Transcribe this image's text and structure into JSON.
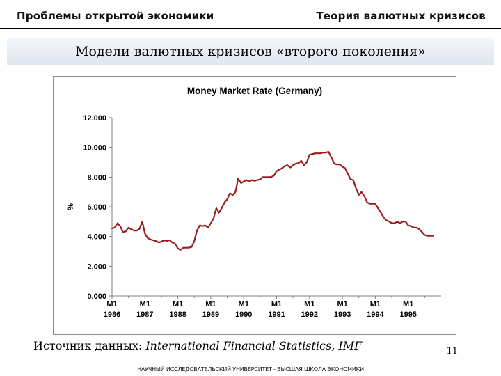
{
  "header": {
    "left": "Проблемы открытой экономики",
    "right": "Теория валютных кризисов"
  },
  "slide": {
    "title": "Модели валютных кризисов «второго поколения»",
    "source_label": "Источник данных:",
    "source_value": "International Financial Statistics, IMF",
    "page_number": "11",
    "footer": "НАУЧНЫЙ ИССЛЕДОВАТЕЛЬСКИЙ УНИВЕРСИТЕТ - ВЫСШАЯ ШКОЛА ЭКОНОМИКИ"
  },
  "colors": {
    "series_line": "#9b1c1c",
    "banner": "#dfe6ee"
  },
  "chart_data": {
    "type": "line",
    "title": "Money Market Rate (Germany)",
    "ylabel": "%",
    "xlabel": "",
    "ylim": [
      0,
      12
    ],
    "yticks": [
      "0.000",
      "2.000",
      "4.000",
      "6.000",
      "8.000",
      "10.000",
      "12.000"
    ],
    "xlim": [
      1986.0,
      1996.0
    ],
    "xticks": [
      {
        "value": 1986,
        "line1": "M1",
        "line2": "1986"
      },
      {
        "value": 1987,
        "line1": "M1",
        "line2": "1987"
      },
      {
        "value": 1988,
        "line1": "M1",
        "line2": "1988"
      },
      {
        "value": 1989,
        "line1": "M1",
        "line2": "1989"
      },
      {
        "value": 1990,
        "line1": "M1",
        "line2": "1990"
      },
      {
        "value": 1991,
        "line1": "M1",
        "line2": "1991"
      },
      {
        "value": 1992,
        "line1": "M1",
        "line2": "1992"
      },
      {
        "value": 1993,
        "line1": "M1",
        "line2": "1993"
      },
      {
        "value": 1994,
        "line1": "M1",
        "line2": "1994"
      },
      {
        "value": 1995,
        "line1": "M1",
        "line2": "1995"
      }
    ],
    "grid": false,
    "legend": "none",
    "series": [
      {
        "points": [
          [
            1986.0,
            4.55
          ],
          [
            1986.08,
            4.6
          ],
          [
            1986.17,
            4.9
          ],
          [
            1986.25,
            4.7
          ],
          [
            1986.33,
            4.3
          ],
          [
            1986.42,
            4.35
          ],
          [
            1986.5,
            4.6
          ],
          [
            1986.58,
            4.5
          ],
          [
            1986.67,
            4.4
          ],
          [
            1986.75,
            4.4
          ],
          [
            1986.83,
            4.5
          ],
          [
            1986.92,
            5.0
          ],
          [
            1987.0,
            4.2
          ],
          [
            1987.08,
            3.9
          ],
          [
            1987.17,
            3.8
          ],
          [
            1987.25,
            3.75
          ],
          [
            1987.33,
            3.7
          ],
          [
            1987.42,
            3.6
          ],
          [
            1987.5,
            3.65
          ],
          [
            1987.58,
            3.75
          ],
          [
            1987.67,
            3.7
          ],
          [
            1987.75,
            3.75
          ],
          [
            1987.83,
            3.6
          ],
          [
            1987.92,
            3.5
          ],
          [
            1988.0,
            3.2
          ],
          [
            1988.08,
            3.1
          ],
          [
            1988.17,
            3.25
          ],
          [
            1988.25,
            3.25
          ],
          [
            1988.33,
            3.25
          ],
          [
            1988.42,
            3.3
          ],
          [
            1988.5,
            3.7
          ],
          [
            1988.58,
            4.4
          ],
          [
            1988.67,
            4.75
          ],
          [
            1988.75,
            4.7
          ],
          [
            1988.83,
            4.75
          ],
          [
            1988.92,
            4.6
          ],
          [
            1989.0,
            4.9
          ],
          [
            1989.08,
            5.2
          ],
          [
            1989.17,
            5.9
          ],
          [
            1989.25,
            5.6
          ],
          [
            1989.33,
            5.9
          ],
          [
            1989.42,
            6.3
          ],
          [
            1989.5,
            6.5
          ],
          [
            1989.58,
            6.9
          ],
          [
            1989.67,
            6.8
          ],
          [
            1989.75,
            7.0
          ],
          [
            1989.83,
            7.9
          ],
          [
            1989.92,
            7.6
          ],
          [
            1990.0,
            7.7
          ],
          [
            1990.08,
            7.8
          ],
          [
            1990.17,
            7.7
          ],
          [
            1990.25,
            7.8
          ],
          [
            1990.33,
            7.75
          ],
          [
            1990.42,
            7.8
          ],
          [
            1990.5,
            7.85
          ],
          [
            1990.58,
            8.0
          ],
          [
            1990.67,
            8.0
          ],
          [
            1990.75,
            8.0
          ],
          [
            1990.83,
            8.0
          ],
          [
            1990.92,
            8.1
          ],
          [
            1991.0,
            8.4
          ],
          [
            1991.08,
            8.5
          ],
          [
            1991.17,
            8.6
          ],
          [
            1991.25,
            8.75
          ],
          [
            1991.33,
            8.8
          ],
          [
            1991.42,
            8.65
          ],
          [
            1991.5,
            8.8
          ],
          [
            1991.58,
            8.9
          ],
          [
            1991.67,
            8.95
          ],
          [
            1991.75,
            9.1
          ],
          [
            1991.83,
            8.8
          ],
          [
            1991.92,
            9.0
          ],
          [
            1992.0,
            9.5
          ],
          [
            1992.08,
            9.55
          ],
          [
            1992.17,
            9.6
          ],
          [
            1992.25,
            9.6
          ],
          [
            1992.33,
            9.6
          ],
          [
            1992.42,
            9.65
          ],
          [
            1992.5,
            9.65
          ],
          [
            1992.58,
            9.7
          ],
          [
            1992.67,
            9.3
          ],
          [
            1992.75,
            8.9
          ],
          [
            1992.83,
            8.85
          ],
          [
            1992.92,
            8.85
          ],
          [
            1993.0,
            8.7
          ],
          [
            1993.08,
            8.6
          ],
          [
            1993.17,
            8.2
          ],
          [
            1993.25,
            7.85
          ],
          [
            1993.33,
            7.8
          ],
          [
            1993.42,
            7.2
          ],
          [
            1993.5,
            6.8
          ],
          [
            1993.58,
            7.0
          ],
          [
            1993.67,
            6.7
          ],
          [
            1993.75,
            6.3
          ],
          [
            1993.83,
            6.2
          ],
          [
            1993.92,
            6.2
          ],
          [
            1994.0,
            6.2
          ],
          [
            1994.08,
            5.9
          ],
          [
            1994.17,
            5.6
          ],
          [
            1994.25,
            5.3
          ],
          [
            1994.33,
            5.1
          ],
          [
            1994.42,
            5.0
          ],
          [
            1994.5,
            4.9
          ],
          [
            1994.58,
            4.9
          ],
          [
            1994.67,
            5.0
          ],
          [
            1994.75,
            4.9
          ],
          [
            1994.83,
            5.0
          ],
          [
            1994.92,
            5.0
          ],
          [
            1995.0,
            4.75
          ],
          [
            1995.08,
            4.7
          ],
          [
            1995.17,
            4.6
          ],
          [
            1995.25,
            4.6
          ],
          [
            1995.33,
            4.5
          ],
          [
            1995.42,
            4.3
          ],
          [
            1995.5,
            4.1
          ],
          [
            1995.58,
            4.05
          ],
          [
            1995.67,
            4.05
          ],
          [
            1995.75,
            4.05
          ]
        ]
      }
    ]
  }
}
